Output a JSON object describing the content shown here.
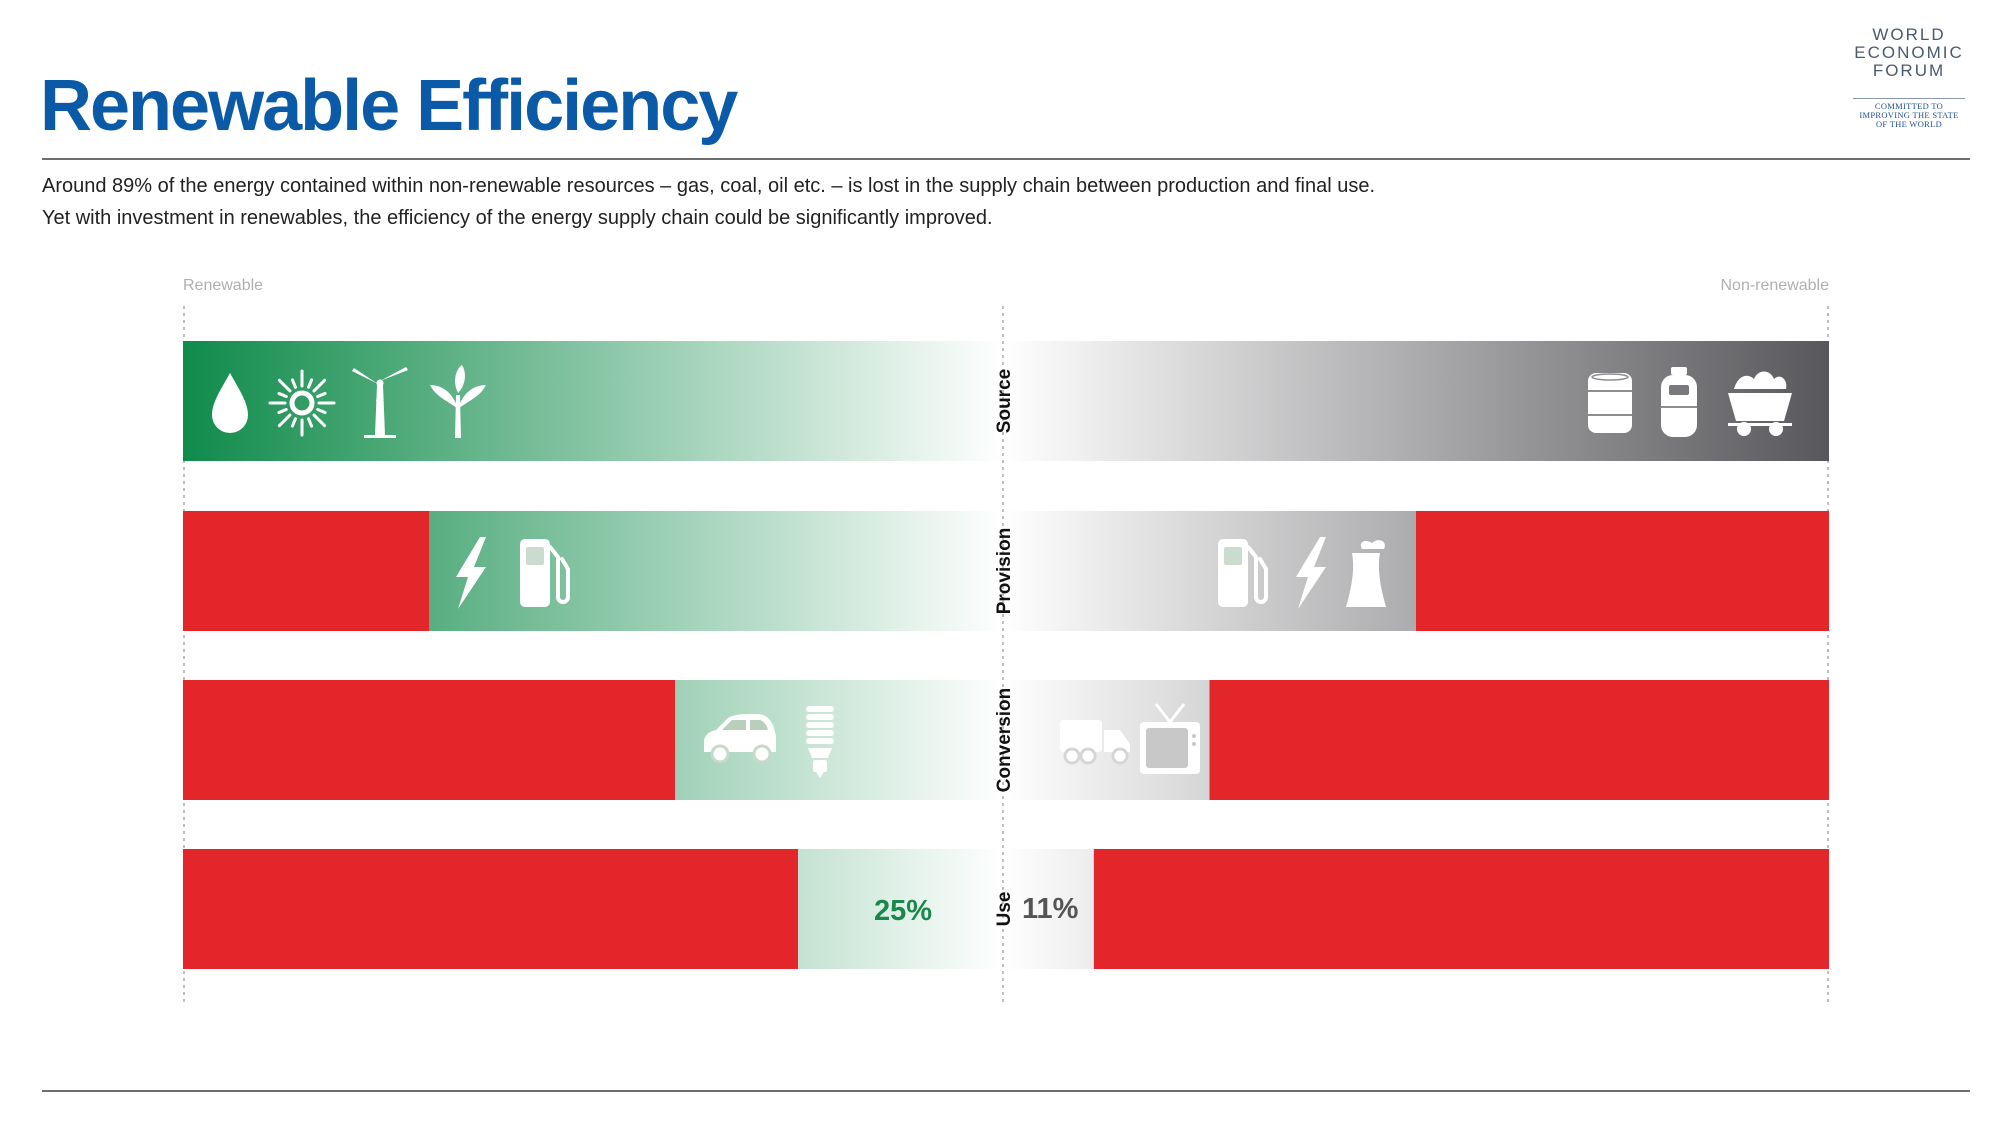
{
  "header": {
    "title": "Renewable Efficiency",
    "subtitle_lines": [
      "Around 89% of the energy contained within non-renewable resources – gas, coal, oil etc. – is lost in the supply chain between production and final use.",
      "Yet with investment in renewables, the efficiency of the energy supply chain could be significantly improved."
    ]
  },
  "logo": {
    "lines": [
      "WORLD",
      "ECONOMIC",
      "FORUM"
    ],
    "tagline": [
      "COMMITTED TO",
      "IMPROVING THE STATE",
      "OF THE WORLD"
    ]
  },
  "colors": {
    "title": "#0b5aa8",
    "renewable": "#0f8b4a",
    "nonrenewable": "#58575b",
    "loss": "#e3262a",
    "renewable_pct": "#19884a",
    "nonrenewable_pct": "#555555"
  },
  "chart_data": {
    "type": "bar",
    "layout": "diverging",
    "left_label": "Renewable",
    "right_label": "Non-renewable",
    "categories": [
      "Source",
      "Provision",
      "Conversion",
      "Use"
    ],
    "series": [
      {
        "name": "Renewable",
        "values": [
          100,
          70,
          40,
          25
        ],
        "icons": [
          [
            "drop-icon",
            "sun-icon",
            "wind-turbine-icon",
            "plant-icon"
          ],
          [
            "lightning-icon",
            "fuel-pump-icon"
          ],
          [
            "car-icon",
            "light-bulb-icon"
          ],
          []
        ]
      },
      {
        "name": "Non-renewable",
        "values": [
          100,
          50,
          25,
          11
        ],
        "icons": [
          [
            "oil-barrel-icon",
            "gas-cylinder-icon",
            "coal-cart-icon"
          ],
          [
            "fuel-pump-icon",
            "lightning-icon",
            "power-plant-icon"
          ],
          [
            "truck-icon",
            "tv-icon"
          ],
          []
        ]
      }
    ],
    "value_labels": {
      "Use": {
        "Renewable": "25%",
        "Non-renewable": "11%"
      }
    },
    "xlim": [
      0,
      100
    ],
    "grid": false
  }
}
